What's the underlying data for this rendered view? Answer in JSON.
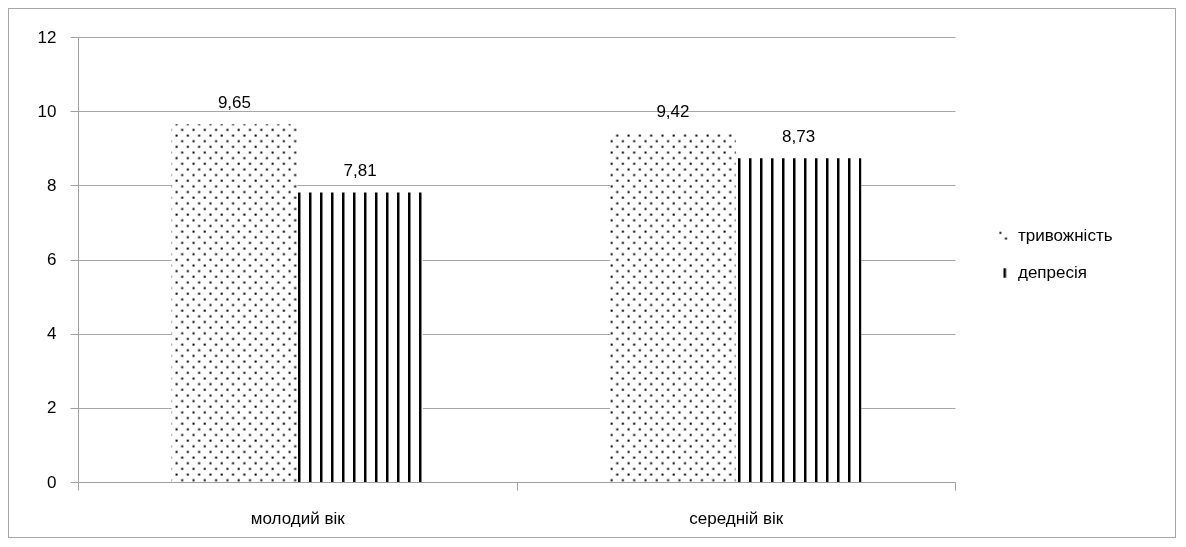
{
  "chart_data": {
    "type": "bar",
    "categories": [
      "молодий вік",
      "середній вік"
    ],
    "series": [
      {
        "name": "тривожність",
        "color": "#000000",
        "values": [
          9.65,
          9.42
        ],
        "value_labels": [
          "9,65",
          "9,42"
        ]
      },
      {
        "name": "депресія",
        "color": "#000000",
        "values": [
          7.81,
          8.73
        ],
        "value_labels": [
          "7,81",
          "8,73"
        ]
      }
    ],
    "ylim": [
      0,
      12
    ],
    "yticks": [
      0,
      2,
      4,
      6,
      8,
      10,
      12
    ],
    "grid": "y",
    "legend": "right"
  }
}
